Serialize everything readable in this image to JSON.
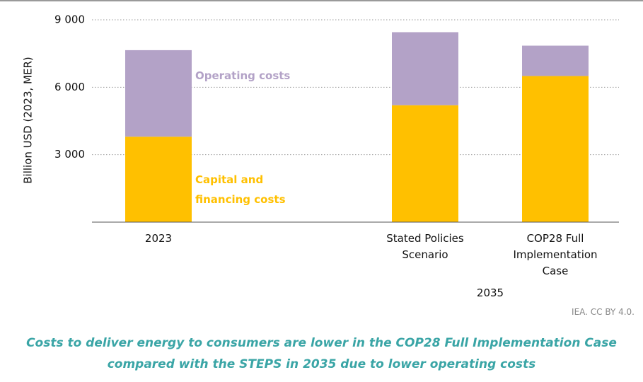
{
  "chart_data": {
    "type": "stacked_bar",
    "categories": [
      "2023",
      "Stated Policies Scenario",
      "COP28 Full Implementation Case"
    ],
    "category_group": {
      "label": "2035",
      "categories": [
        1,
        2
      ]
    },
    "y_label": "Billion USD (2023, MER)",
    "series": [
      {
        "name": "Capital and financing costs",
        "color": "#ffc000",
        "values": [
          3800,
          5200,
          6500
        ]
      },
      {
        "name": "Operating costs",
        "color": "#b3a2c7",
        "values": [
          3850,
          3250,
          1350
        ]
      }
    ],
    "ylim": [
      0,
      9000
    ],
    "yticks": [
      {
        "value": 3000,
        "label": "3 000"
      },
      {
        "value": 6000,
        "label": "6 000"
      },
      {
        "value": 9000,
        "label": "9 000"
      }
    ],
    "grid": true,
    "source": "IEA. CC BY 4.0.",
    "caption": "Costs to deliver energy to consumers are lower in the COP28 Full Implementation Case compared with the STEPS in 2035 due to lower operating costs"
  }
}
